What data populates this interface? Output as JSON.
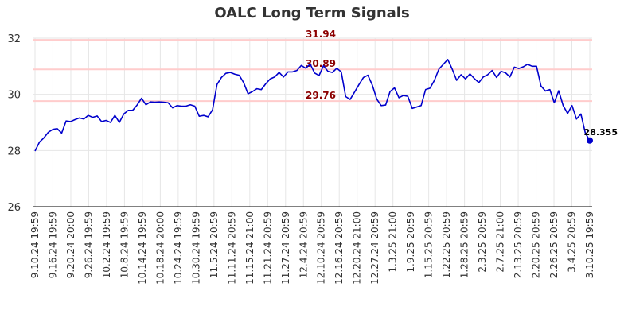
{
  "chart_data": {
    "type": "line",
    "title": "OALC Long Term Signals",
    "xlabel": "",
    "ylabel": "",
    "ylim": [
      26,
      32
    ],
    "yticks": [
      "26",
      "28",
      "30",
      "32"
    ],
    "grid": true,
    "x_tick_labels": [
      "9.10.24 19:59",
      "9.16.24 19:59",
      "9.20.24 20:00",
      "9.26.24 19:59",
      "10.2.24 19:59",
      "10.8.24 19:59",
      "10.14.24 19:59",
      "10.18.24 20:00",
      "10.24.24 19:59",
      "10.30.24 19:59",
      "11.5.24 20:59",
      "11.11.24 20:59",
      "11.15.24 21:00",
      "11.21.24 20:59",
      "11.27.24 20:59",
      "12.4.24 20:59",
      "12.10.24 20:59",
      "12.16.24 20:59",
      "12.20.24 21:00",
      "12.27.24 20:59",
      "1.3.25 21:00",
      "1.9.25 20:59",
      "1.15.25 20:59",
      "1.22.25 20:59",
      "1.28.25 20:59",
      "2.3.25 20:59",
      "2.7.25 21:00",
      "2.13.25 20:59",
      "2.20.25 20:59",
      "2.26.25 20:59",
      "3.4.25 20:59",
      "3.10.25 19:59"
    ],
    "signal_lines": [
      {
        "value": 31.94,
        "label": "31.94"
      },
      {
        "value": 30.89,
        "label": "30.89"
      },
      {
        "value": 29.76,
        "label": "29.76"
      }
    ],
    "last_point_label": "28.355",
    "colors": {
      "line": "#0000cc",
      "signal": "#ffcccc",
      "signal_text": "#8b0000",
      "title": "#333333"
    },
    "series": [
      {
        "values": [
          27.98,
          28.3,
          28.45,
          28.65,
          28.75,
          28.78,
          28.62,
          29.05,
          29.03,
          29.1,
          29.16,
          29.12,
          29.25,
          29.18,
          29.23,
          29.03,
          29.07,
          29.0,
          29.25,
          29.0,
          29.3,
          29.43,
          29.43,
          29.62,
          29.86,
          29.63,
          29.73,
          29.72,
          29.73,
          29.72,
          29.7,
          29.52,
          29.6,
          29.58,
          29.58,
          29.63,
          29.58,
          29.22,
          29.25,
          29.2,
          29.45,
          30.35,
          30.6,
          30.75,
          30.78,
          30.72,
          30.68,
          30.42,
          30.02,
          30.1,
          30.2,
          30.17,
          30.38,
          30.55,
          30.62,
          30.78,
          30.62,
          30.8,
          30.8,
          30.85,
          31.03,
          30.93,
          31.08,
          30.76,
          30.67,
          31.02,
          30.82,
          30.78,
          30.93,
          30.8,
          29.92,
          29.82,
          30.08,
          30.35,
          30.6,
          30.68,
          30.33,
          29.83,
          29.6,
          29.62,
          30.1,
          30.23,
          29.88,
          29.96,
          29.93,
          29.5,
          29.55,
          29.6,
          30.17,
          30.22,
          30.5,
          30.9,
          31.07,
          31.24,
          30.9,
          30.5,
          30.7,
          30.55,
          30.73,
          30.56,
          30.42,
          30.62,
          30.7,
          30.85,
          30.6,
          30.82,
          30.77,
          30.62,
          30.97,
          30.92,
          30.98,
          31.07,
          31.0,
          31.0,
          30.3,
          30.12,
          30.17,
          29.7,
          30.13,
          29.6,
          29.32,
          29.6,
          29.12,
          29.3,
          28.62,
          28.355
        ]
      }
    ]
  }
}
